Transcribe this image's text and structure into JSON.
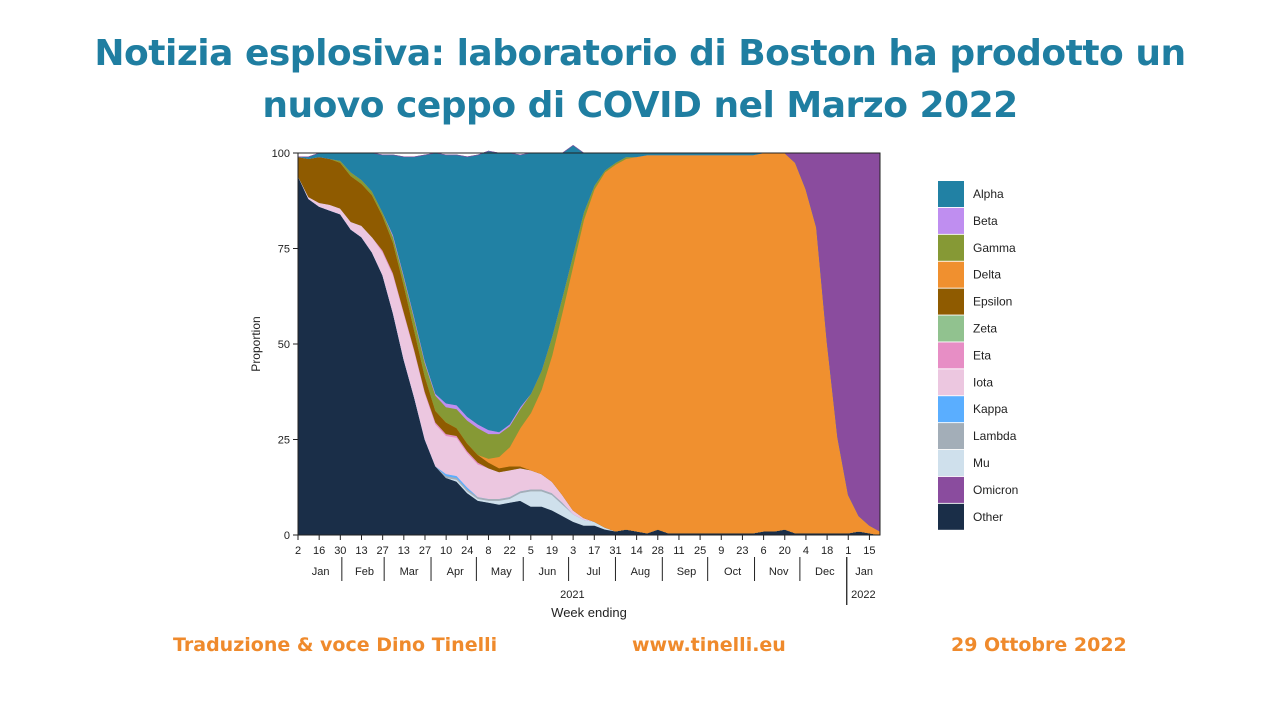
{
  "header": {
    "line1": "Notizia esplosiva: laboratorio di Boston ha prodotto un",
    "line2": "nuovo ceppo di COVID nel Marzo 2022"
  },
  "footer": {
    "credit": "Traduzione & voce Dino Tinelli",
    "website": "www.tinelli.eu",
    "date": "29 Ottobre 2022"
  },
  "chart_data": {
    "type": "area",
    "stacked": true,
    "xlabel": "Week ending",
    "ylabel": "Proportion",
    "ylim": [
      0,
      100
    ],
    "yticks": [
      0,
      25,
      50,
      75,
      100
    ],
    "grid": false,
    "legend_position": "right",
    "x": [
      "2021-01-02",
      "2021-01-09",
      "2021-01-16",
      "2021-01-23",
      "2021-01-30",
      "2021-02-06",
      "2021-02-13",
      "2021-02-20",
      "2021-02-27",
      "2021-03-06",
      "2021-03-13",
      "2021-03-20",
      "2021-03-27",
      "2021-04-03",
      "2021-04-10",
      "2021-04-17",
      "2021-04-24",
      "2021-05-01",
      "2021-05-08",
      "2021-05-15",
      "2021-05-22",
      "2021-05-29",
      "2021-06-05",
      "2021-06-12",
      "2021-06-19",
      "2021-06-26",
      "2021-07-03",
      "2021-07-10",
      "2021-07-17",
      "2021-07-24",
      "2021-07-31",
      "2021-08-07",
      "2021-08-14",
      "2021-08-21",
      "2021-08-28",
      "2021-09-04",
      "2021-09-11",
      "2021-09-18",
      "2021-09-25",
      "2021-10-02",
      "2021-10-09",
      "2021-10-16",
      "2021-10-23",
      "2021-10-30",
      "2021-11-06",
      "2021-11-13",
      "2021-11-20",
      "2021-11-27",
      "2021-12-04",
      "2021-12-11",
      "2021-12-18",
      "2021-12-25",
      "2022-01-01",
      "2022-01-08",
      "2022-01-15",
      "2022-01-22"
    ],
    "series": [
      {
        "name": "Other",
        "color": "#1a2e48",
        "values": [
          94,
          88,
          86,
          85,
          84,
          80,
          78,
          74,
          68,
          58,
          46,
          36,
          25,
          18,
          15,
          14,
          11,
          9,
          8.5,
          8,
          8.5,
          9,
          7.5,
          7.5,
          6.5,
          5,
          3.5,
          2.5,
          2.5,
          1.5,
          1,
          1.5,
          1,
          0.5,
          1.5,
          0.5,
          0.5,
          0.5,
          0.5,
          0.5,
          0.5,
          0.5,
          0.5,
          0.5,
          1,
          1,
          1.5,
          0.5,
          0.5,
          0.5,
          0.5,
          0.5,
          0.5,
          1,
          0.5,
          0
        ]
      },
      {
        "name": "Mu",
        "color": "#cfe0ec",
        "values": [
          0,
          0,
          0,
          0,
          0,
          0,
          0,
          0,
          0,
          0,
          0,
          0,
          0,
          0,
          0,
          0.5,
          0.5,
          0.5,
          0.5,
          1,
          1,
          2,
          4,
          4,
          4,
          3,
          2,
          1.5,
          1,
          0.5,
          0,
          0,
          0,
          0,
          0,
          0,
          0,
          0,
          0,
          0,
          0,
          0,
          0,
          0,
          0,
          0,
          0,
          0,
          0,
          0,
          0,
          0,
          0,
          0,
          0,
          0
        ]
      },
      {
        "name": "Lambda",
        "color": "#a3aeb8",
        "values": [
          0,
          0,
          0,
          0,
          0,
          0,
          0,
          0,
          0,
          0,
          0,
          0,
          0,
          0,
          0.5,
          0.5,
          0.5,
          0.5,
          0.5,
          0.5,
          0.5,
          0.5,
          0.5,
          0.5,
          0.5,
          0.5,
          0,
          0,
          0,
          0,
          0,
          0,
          0,
          0,
          0,
          0,
          0,
          0,
          0,
          0,
          0,
          0,
          0,
          0,
          0,
          0,
          0,
          0,
          0,
          0,
          0,
          0,
          0,
          0,
          0,
          0
        ]
      },
      {
        "name": "Kappa",
        "color": "#5aaeff",
        "values": [
          0,
          0,
          0,
          0,
          0,
          0,
          0,
          0,
          0,
          0,
          0,
          0,
          0,
          0,
          0.5,
          0.5,
          0.5,
          0,
          0,
          0,
          0,
          0,
          0,
          0,
          0,
          0,
          0,
          0,
          0,
          0,
          0,
          0,
          0,
          0,
          0,
          0,
          0,
          0,
          0,
          0,
          0,
          0,
          0,
          0,
          0,
          0,
          0,
          0,
          0,
          0,
          0,
          0,
          0,
          0,
          0,
          0
        ]
      },
      {
        "name": "Iota",
        "color": "#ecc7e0",
        "values": [
          0,
          0.5,
          1,
          1.5,
          1.5,
          2,
          3,
          4,
          6,
          10,
          12,
          12,
          12,
          11,
          10,
          10,
          9,
          8.5,
          8,
          7,
          7,
          6,
          5,
          4,
          3,
          2,
          1,
          0.5,
          0,
          0,
          0,
          0,
          0,
          0,
          0,
          0,
          0,
          0,
          0,
          0,
          0,
          0,
          0,
          0,
          0,
          0,
          0,
          0,
          0,
          0,
          0,
          0,
          0,
          0,
          0,
          0
        ]
      },
      {
        "name": "Eta",
        "color": "#e78ec5",
        "values": [
          0,
          0,
          0,
          0,
          0,
          0,
          0,
          0,
          0.5,
          0.5,
          0.5,
          0.5,
          0.5,
          0.5,
          0.5,
          0.5,
          0.5,
          0.5,
          0,
          0,
          0,
          0,
          0,
          0,
          0,
          0,
          0,
          0,
          0,
          0,
          0,
          0,
          0,
          0,
          0,
          0,
          0,
          0,
          0,
          0,
          0,
          0,
          0,
          0,
          0,
          0,
          0,
          0,
          0,
          0,
          0,
          0,
          0,
          0,
          0,
          0
        ]
      },
      {
        "name": "Zeta",
        "color": "#91c28f",
        "values": [
          0,
          0,
          0,
          0,
          0,
          0,
          0,
          0,
          0,
          0,
          0,
          0,
          0,
          0,
          0,
          0,
          0,
          0,
          0,
          0,
          0,
          0,
          0,
          0,
          0,
          0,
          0,
          0,
          0,
          0,
          0,
          0,
          0,
          0,
          0,
          0,
          0,
          0,
          0,
          0,
          0,
          0,
          0,
          0,
          0,
          0,
          0,
          0,
          0,
          0,
          0,
          0,
          0,
          0,
          0,
          0
        ]
      },
      {
        "name": "Epsilon",
        "color": "#8f5b00",
        "values": [
          5,
          10,
          12,
          12,
          12,
          12,
          11,
          11,
          9,
          8,
          7,
          5,
          4,
          3,
          3,
          2,
          2,
          2,
          1.5,
          1,
          1,
          0.5,
          0,
          0,
          0,
          0,
          0,
          0,
          0,
          0,
          0,
          0,
          0,
          0,
          0,
          0,
          0,
          0,
          0,
          0,
          0,
          0,
          0,
          0,
          0,
          0,
          0,
          0,
          0,
          0,
          0,
          0,
          0,
          0,
          0,
          0
        ]
      },
      {
        "name": "Delta",
        "color": "#f0902f",
        "values": [
          0,
          0,
          0,
          0,
          0,
          0,
          0,
          0,
          0,
          0,
          0,
          0,
          0,
          0,
          0,
          0,
          0,
          0,
          1,
          3,
          5,
          10,
          15,
          22,
          33,
          48,
          64,
          78,
          87,
          93,
          96,
          97,
          98,
          99,
          98,
          99,
          99,
          99,
          99,
          99,
          99,
          99,
          99,
          99,
          99,
          99,
          98.5,
          97,
          90,
          80,
          50,
          25,
          10,
          4,
          2,
          1
        ]
      },
      {
        "name": "Gamma",
        "color": "#869935",
        "values": [
          0,
          0,
          0,
          0,
          0.5,
          1,
          1,
          1,
          1,
          1.5,
          2,
          3,
          3.5,
          4,
          4,
          5,
          6,
          7,
          6.5,
          6,
          5.5,
          5,
          5,
          5,
          5,
          4,
          3,
          2,
          1,
          0.5,
          0.5,
          0.5,
          0,
          0,
          0,
          0,
          0,
          0,
          0,
          0,
          0,
          0,
          0,
          0,
          0,
          0,
          0,
          0,
          0,
          0,
          0,
          0,
          0,
          0,
          0,
          0
        ]
      },
      {
        "name": "Beta",
        "color": "#bf8ef0",
        "values": [
          0,
          0,
          0,
          0,
          0,
          0,
          0,
          0,
          0,
          0.5,
          0.5,
          0.5,
          0.5,
          0.5,
          1,
          1,
          1,
          1,
          1,
          0.5,
          0.5,
          0.5,
          0,
          0,
          0,
          0,
          0,
          0,
          0,
          0,
          0,
          0,
          0,
          0,
          0,
          0,
          0,
          0,
          0,
          0,
          0,
          0,
          0,
          0,
          0,
          0,
          0,
          0,
          0,
          0,
          0,
          0,
          0,
          0,
          0,
          0
        ]
      },
      {
        "name": "Alpha",
        "color": "#2181a4",
        "values": [
          0,
          0.5,
          1,
          1.5,
          2,
          5,
          7,
          10,
          15,
          21,
          31,
          42,
          54,
          63,
          65,
          65.5,
          68,
          70.5,
          73,
          73,
          71,
          66,
          63,
          57,
          48,
          37.5,
          28.5,
          15.5,
          8.5,
          4.5,
          2.5,
          1,
          1,
          0.5,
          0.5,
          0.5,
          0.5,
          0.5,
          0.5,
          0.5,
          0.5,
          0.5,
          0.5,
          0.5,
          0,
          0,
          0,
          0,
          0,
          0,
          0,
          0,
          0,
          0,
          0,
          0
        ]
      },
      {
        "name": "Omicron",
        "color": "#8a4c9e",
        "values": [
          0,
          0,
          0,
          0,
          0,
          0,
          0,
          0,
          0,
          0,
          0,
          0,
          0,
          0,
          0,
          0,
          0,
          0,
          0,
          0,
          0,
          0,
          0,
          0,
          0,
          0,
          0,
          0,
          0,
          0,
          0,
          0,
          0,
          0,
          0,
          0,
          0,
          0,
          0,
          0,
          0,
          0,
          0,
          0,
          0,
          0,
          0,
          2.5,
          9.5,
          19.5,
          49.5,
          74.5,
          89.5,
          95,
          97.5,
          99
        ]
      }
    ],
    "legend_order": [
      "Alpha",
      "Beta",
      "Gamma",
      "Delta",
      "Epsilon",
      "Zeta",
      "Eta",
      "Iota",
      "Kappa",
      "Lambda",
      "Mu",
      "Omicron",
      "Other"
    ],
    "x_day_ticks": [
      "2",
      "16",
      "30",
      "13",
      "27",
      "13",
      "27",
      "10",
      "24",
      "8",
      "22",
      "5",
      "19",
      "3",
      "17",
      "31",
      "14",
      "28",
      "11",
      "25",
      "9",
      "23",
      "6",
      "20",
      "4",
      "18",
      "1",
      "15"
    ],
    "x_month_labels": [
      "Jan",
      "Feb",
      "Mar",
      "Apr",
      "May",
      "Jun",
      "Jul",
      "Aug",
      "Sep",
      "Oct",
      "Nov",
      "Dec",
      "Jan"
    ],
    "x_year_labels": [
      "2021",
      "2022"
    ]
  }
}
